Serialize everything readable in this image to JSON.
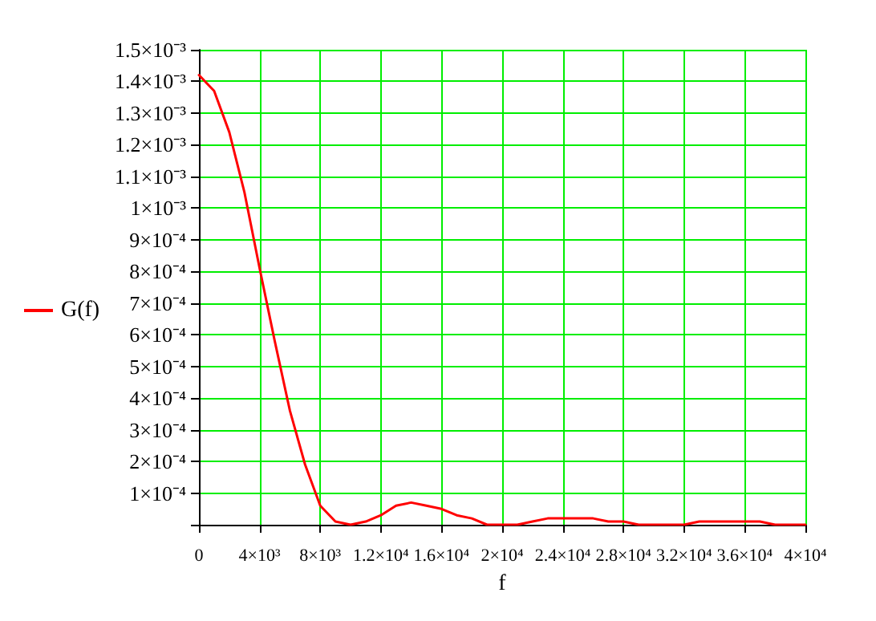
{
  "chart_data": {
    "type": "line",
    "xlabel": "f",
    "legend": "left",
    "grid": true,
    "marker": "none",
    "line_style": "solid",
    "x": [
      0,
      1000,
      2000,
      3000,
      4000,
      5000,
      6000,
      7000,
      8000,
      9000,
      10000,
      11000,
      12000,
      13000,
      14000,
      15000,
      16000,
      17000,
      18000,
      19000,
      20000,
      21000,
      22000,
      23000,
      24000,
      25000,
      26000,
      27000,
      28000,
      29000,
      30000,
      31000,
      32000,
      33000,
      34000,
      35000,
      36000,
      37000,
      38000,
      39000,
      40000
    ],
    "series": [
      {
        "name": "G(f)",
        "color": "#ff0000",
        "values": [
          0.00142,
          0.00137,
          0.00124,
          0.00105,
          0.00081,
          0.00058,
          0.00036,
          0.00019,
          6e-05,
          1e-05,
          0,
          1e-05,
          3e-05,
          6e-05,
          7e-05,
          6e-05,
          5e-05,
          3e-05,
          2e-05,
          0,
          0,
          0,
          1e-05,
          2e-05,
          2e-05,
          2e-05,
          2e-05,
          1e-05,
          1e-05,
          0,
          0,
          0,
          0,
          1e-05,
          1e-05,
          1e-05,
          1e-05,
          1e-05,
          0,
          0,
          0
        ]
      }
    ],
    "xlim": [
      0,
      40000
    ],
    "xticks": [
      0,
      {
        "value": 4000,
        "label": "4×10³"
      },
      {
        "value": 8000,
        "label": "8×10³"
      },
      {
        "value": 12000,
        "label": "1.2×10⁴"
      },
      {
        "value": 16000,
        "label": "1.6×10⁴"
      },
      {
        "value": 20000,
        "label": "2×10⁴"
      },
      {
        "value": 24000,
        "label": "2.4×10⁴"
      },
      {
        "value": 28000,
        "label": "2.8×10⁴"
      },
      {
        "value": 32000,
        "label": "3.2×10⁴"
      },
      {
        "value": 36000,
        "label": "3.6×10⁴"
      },
      {
        "value": 40000,
        "label": "4×10⁴"
      }
    ],
    "ylim": [
      0,
      0.0015
    ],
    "yticks": [
      {
        "value": 0,
        "label": null
      },
      {
        "value": 0.0001,
        "label": "1×10⁻⁴"
      },
      {
        "value": 0.0002,
        "label": "2×10⁻⁴"
      },
      {
        "value": 0.0003,
        "label": "3×10⁻⁴"
      },
      {
        "value": 0.0004,
        "label": "4×10⁻⁴"
      },
      {
        "value": 0.0005,
        "label": "5×10⁻⁴"
      },
      {
        "value": 0.0006,
        "label": "6×10⁻⁴"
      },
      {
        "value": 0.0007,
        "label": "7×10⁻⁴"
      },
      {
        "value": 0.0008,
        "label": "8×10⁻⁴"
      },
      {
        "value": 0.0009,
        "label": "9×10⁻⁴"
      },
      {
        "value": 0.001,
        "label": "1×10⁻³"
      },
      {
        "value": 0.0011,
        "label": "1.1×10⁻³"
      },
      {
        "value": 0.0012,
        "label": "1.2×10⁻³"
      },
      {
        "value": 0.0013,
        "label": "1.3×10⁻³"
      },
      {
        "value": 0.0014,
        "label": "1.4×10⁻³"
      },
      {
        "value": 0.0015,
        "label": "1.5×10⁻³"
      }
    ]
  }
}
